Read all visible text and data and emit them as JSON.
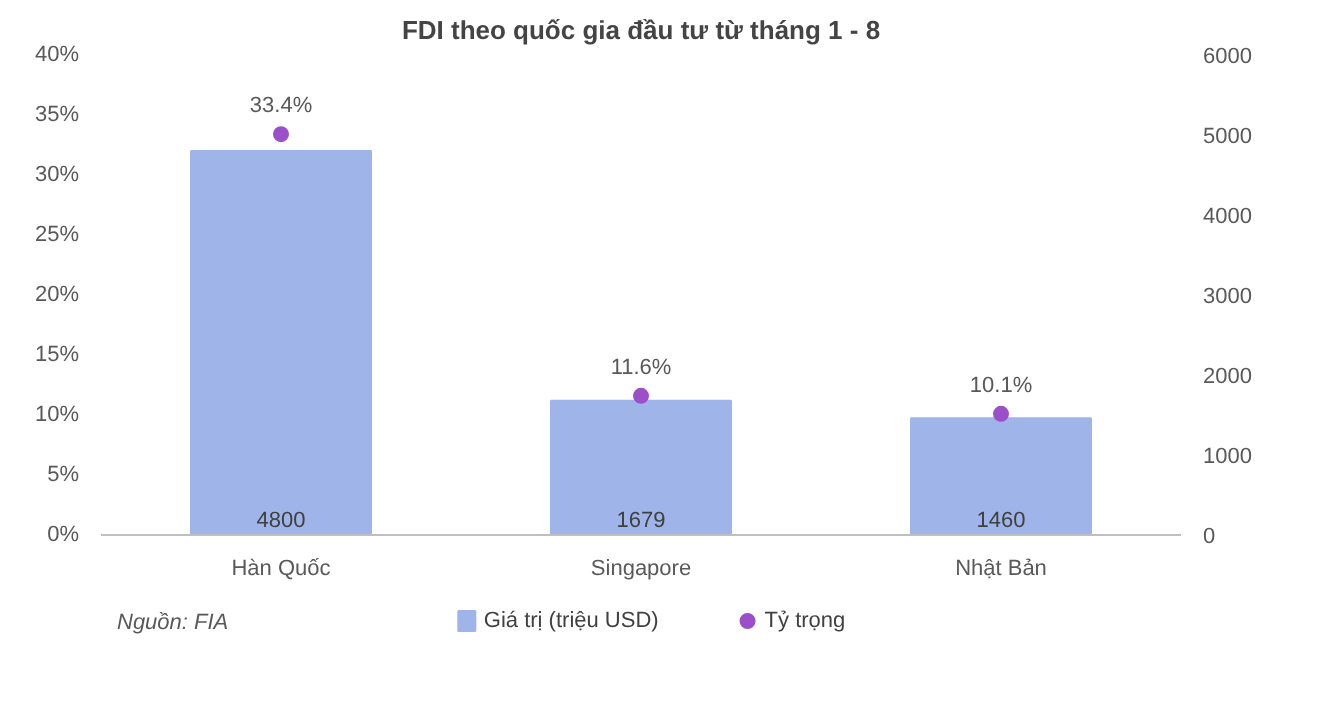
{
  "chart_data": {
    "type": "bar",
    "title": "FDI theo quốc gia đầu tư từ tháng 1 - 8",
    "categories": [
      "Hàn Quốc",
      "Singapore",
      "Nhật Bản"
    ],
    "series": [
      {
        "name": "Giá trị (triệu USD)",
        "axis": "y2",
        "color": "#9fb5e9",
        "values": [
          4800,
          1679,
          1460
        ],
        "value_labels": [
          "4800",
          "1679",
          "1460"
        ]
      },
      {
        "name": "Tỷ trọng",
        "type": "scatter",
        "axis": "y",
        "color": "#9b4fc9",
        "values": [
          33.4,
          11.6,
          10.1
        ],
        "value_labels": [
          "33.4%",
          "11.6%",
          "10.1%"
        ]
      }
    ],
    "ylim": [
      0,
      40
    ],
    "yticks": [
      {
        "value": 0,
        "label": "0%"
      },
      {
        "value": 5,
        "label": "5%"
      },
      {
        "value": 10,
        "label": "10%"
      },
      {
        "value": 15,
        "label": "15%"
      },
      {
        "value": 20,
        "label": "20%"
      },
      {
        "value": 25,
        "label": "25%"
      },
      {
        "value": 30,
        "label": "30%"
      },
      {
        "value": 35,
        "label": "35%"
      },
      {
        "value": 40,
        "label": "40%"
      }
    ],
    "y2lim": [
      0,
      6000
    ],
    "y2ticks": [
      0,
      1000,
      2000,
      3000,
      4000,
      5000,
      6000
    ],
    "grid": false,
    "legend": "bottom",
    "marker": "circle",
    "annotations": [
      "Nguồn: FIA"
    ]
  }
}
